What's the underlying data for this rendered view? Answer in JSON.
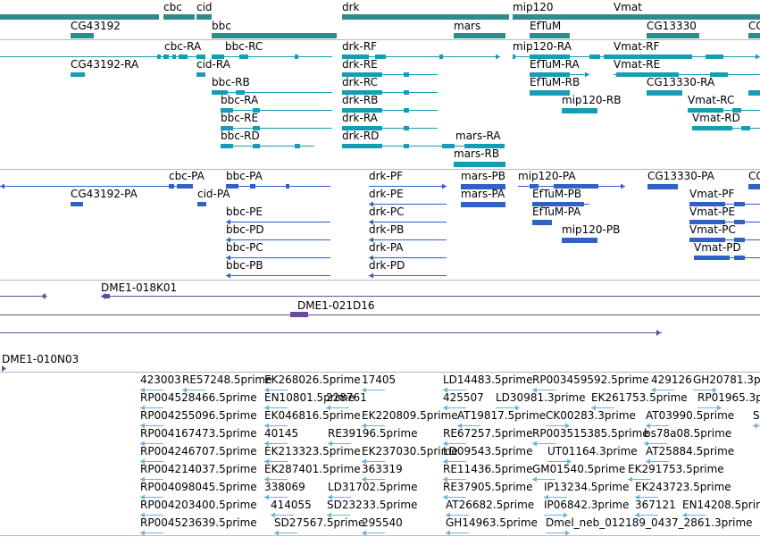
{
  "colors": {
    "gene": "#2e8c8c",
    "transcript": "#169cb4",
    "protein": "#2f62c4",
    "clone": "#6b4a9e",
    "est": "#6fb3d8",
    "divider": "#b8b8b8"
  },
  "tracks": {
    "genes": {
      "labels": [
        "cbc",
        "cid",
        "drk",
        "mip120",
        "Vmat",
        "CG43192",
        "bbc",
        "mars",
        "EfTuM",
        "CG13330",
        "CG"
      ]
    },
    "transcripts": {
      "labels": [
        "cbc-RA",
        "bbc-RC",
        "drk-RF",
        "mip120-RA",
        "Vmat-RF",
        "CG43192-RA",
        "cid-RA",
        "drk-RE",
        "EfTuM-RA",
        "Vmat-RE",
        "bbc-RB",
        "drk-RC",
        "EfTuM-RB",
        "CG13330-RA",
        "bbc-RA",
        "drk-RB",
        "mip120-RB",
        "Vmat-RC",
        "bbc-RE",
        "drk-RA",
        "Vmat-RD",
        "bbc-RD",
        "drk-RD",
        "mars-RA",
        "mars-RB"
      ]
    },
    "proteins": {
      "labels": [
        "cbc-PA",
        "bbc-PA",
        "drk-PF",
        "mars-PB",
        "mip120-PA",
        "CG13330-PA",
        "CG",
        "CG43192-PA",
        "cid-PA",
        "drk-PE",
        "mars-PA",
        "EfTuM-PB",
        "Vmat-PF",
        "bbc-PE",
        "drk-PC",
        "EfTuM-PA",
        "Vmat-PE",
        "bbc-PD",
        "drk-PB",
        "mip120-PB",
        "Vmat-PC",
        "bbc-PC",
        "drk-PA",
        "Vmat-PD",
        "bbc-PB",
        "drk-PD"
      ]
    },
    "clones": {
      "labels": [
        "DME1-018K01",
        "DME1-021D16",
        "DME1-010N03"
      ]
    },
    "ests": {
      "labels": [
        "423003",
        "RE57248.5prime",
        "EK268026.5prime",
        "17405",
        "LD14483.5prime",
        "RP003459592.5prime",
        "429126",
        "GH20781.3p",
        "RP004528466.5prime",
        "EN10801.5prime",
        "228761",
        "425507",
        "LD30981.3prime",
        "EK261753.5prime",
        "RP01965.3pri",
        "RP004255096.5prime",
        "EK046816.5prime",
        "EK220809.5prime",
        "AT19817.5prime",
        "CK00283.3prime",
        "AT03990.5prime",
        "S",
        "RP004167473.5prime",
        "40145",
        "RE39196.5prime",
        "RE67257.5prime",
        "RP003515385.5prime",
        "bs78a08.5prime",
        "RP004246707.5prime",
        "EK213323.5prime",
        "EK237030.5prime",
        "LD09543.5prime",
        "UT01164.3prime",
        "AT25884.5prime",
        "RP004214037.5prime",
        "EK287401.5prime",
        "363319",
        "RE11436.5prime",
        "GM01540.5prime",
        "EK291753.5prime",
        "RP004098045.5prime",
        "338069",
        "LD31702.5prime",
        "RE37905.5prime",
        "IP13234.5prime",
        "EK243723.5prime",
        "RP004203400.5prime",
        "414055",
        "SD23233.5prime",
        "AT26682.5prime",
        "IP06842.3prime",
        "367121",
        "EN14208.5prime",
        "RP004523639.5prime",
        "SD27567.5prime",
        "295540",
        "GH14963.5prime",
        "Dmel_neb_012189_0437_2861.3prime"
      ]
    }
  }
}
